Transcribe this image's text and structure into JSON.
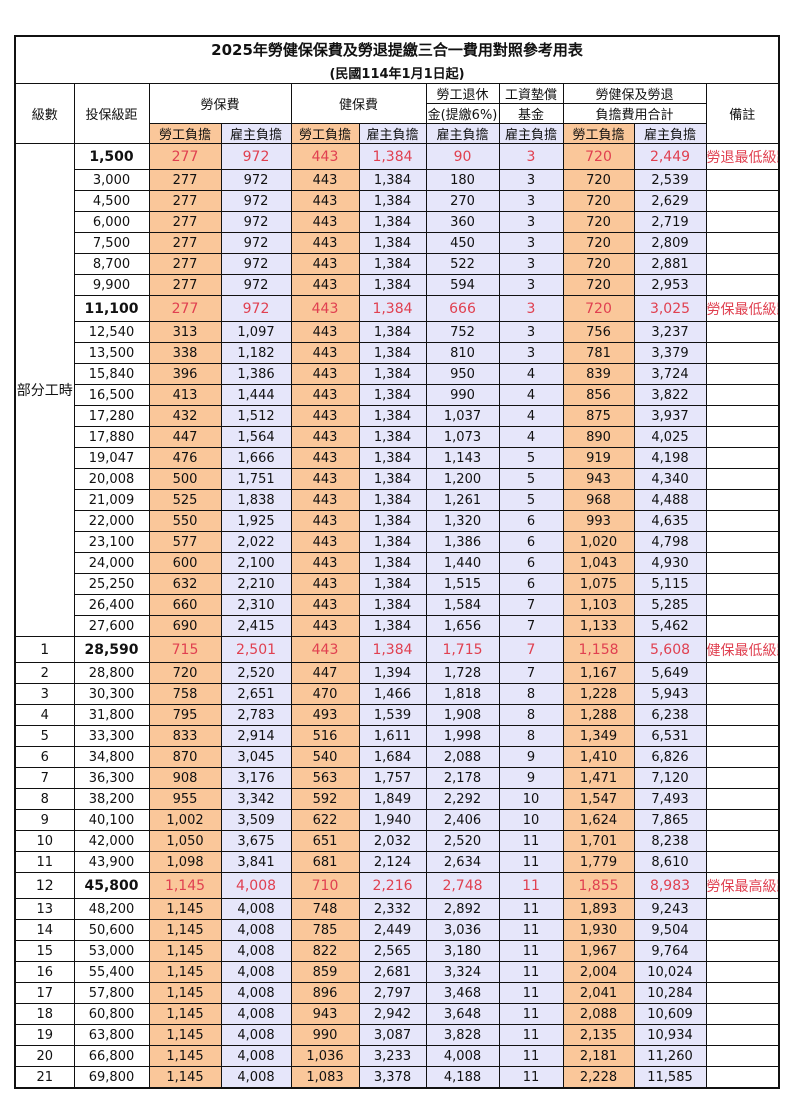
{
  "title": "2025年勞健保保費及勞退提繳三合一費用對照參考用表",
  "subtitle": "(民國114年1月1日起)",
  "headers": {
    "grade": "級數",
    "insured": "投保級距",
    "labor": "勞保費",
    "health": "健保費",
    "pension_1": "勞工退休",
    "pension_2": "金(提繳6%)",
    "wage_1": "工資墊償",
    "wage_2": "基金",
    "total_1": "勞健保及勞退",
    "total_2": "負擔費用合計",
    "note": "備註",
    "worker": "勞工負擔",
    "employer": "雇主負擔"
  },
  "colors": {
    "worker_bg": "#fac79a",
    "employer_bg": "#e6e6fa",
    "highlight_text": "#e04050"
  },
  "part_time_label": "部分工時",
  "rows": [
    {
      "c": [
        "",
        "1,500",
        "277",
        "972",
        "443",
        "1,384",
        "90",
        "3",
        "720",
        "2,449"
      ],
      "hl": true,
      "note": "勞退最低級距"
    },
    {
      "c": [
        "",
        "3,000",
        "277",
        "972",
        "443",
        "1,384",
        "180",
        "3",
        "720",
        "2,539"
      ]
    },
    {
      "c": [
        "",
        "4,500",
        "277",
        "972",
        "443",
        "1,384",
        "270",
        "3",
        "720",
        "2,629"
      ]
    },
    {
      "c": [
        "",
        "6,000",
        "277",
        "972",
        "443",
        "1,384",
        "360",
        "3",
        "720",
        "2,719"
      ]
    },
    {
      "c": [
        "",
        "7,500",
        "277",
        "972",
        "443",
        "1,384",
        "450",
        "3",
        "720",
        "2,809"
      ]
    },
    {
      "c": [
        "",
        "8,700",
        "277",
        "972",
        "443",
        "1,384",
        "522",
        "3",
        "720",
        "2,881"
      ]
    },
    {
      "c": [
        "",
        "9,900",
        "277",
        "972",
        "443",
        "1,384",
        "594",
        "3",
        "720",
        "2,953"
      ]
    },
    {
      "c": [
        "",
        "11,100",
        "277",
        "972",
        "443",
        "1,384",
        "666",
        "3",
        "720",
        "3,025"
      ],
      "hl": true,
      "note": "勞保最低級距"
    },
    {
      "c": [
        "",
        "12,540",
        "313",
        "1,097",
        "443",
        "1,384",
        "752",
        "3",
        "756",
        "3,237"
      ]
    },
    {
      "c": [
        "",
        "13,500",
        "338",
        "1,182",
        "443",
        "1,384",
        "810",
        "3",
        "781",
        "3,379"
      ]
    },
    {
      "c": [
        "",
        "15,840",
        "396",
        "1,386",
        "443",
        "1,384",
        "950",
        "4",
        "839",
        "3,724"
      ]
    },
    {
      "c": [
        "",
        "16,500",
        "413",
        "1,444",
        "443",
        "1,384",
        "990",
        "4",
        "856",
        "3,822"
      ]
    },
    {
      "c": [
        "",
        "17,280",
        "432",
        "1,512",
        "443",
        "1,384",
        "1,037",
        "4",
        "875",
        "3,937"
      ]
    },
    {
      "c": [
        "",
        "17,880",
        "447",
        "1,564",
        "443",
        "1,384",
        "1,073",
        "4",
        "890",
        "4,025"
      ]
    },
    {
      "c": [
        "",
        "19,047",
        "476",
        "1,666",
        "443",
        "1,384",
        "1,143",
        "5",
        "919",
        "4,198"
      ]
    },
    {
      "c": [
        "",
        "20,008",
        "500",
        "1,751",
        "443",
        "1,384",
        "1,200",
        "5",
        "943",
        "4,340"
      ]
    },
    {
      "c": [
        "",
        "21,009",
        "525",
        "1,838",
        "443",
        "1,384",
        "1,261",
        "5",
        "968",
        "4,488"
      ]
    },
    {
      "c": [
        "",
        "22,000",
        "550",
        "1,925",
        "443",
        "1,384",
        "1,320",
        "6",
        "993",
        "4,635"
      ]
    },
    {
      "c": [
        "",
        "23,100",
        "577",
        "2,022",
        "443",
        "1,384",
        "1,386",
        "6",
        "1,020",
        "4,798"
      ]
    },
    {
      "c": [
        "",
        "24,000",
        "600",
        "2,100",
        "443",
        "1,384",
        "1,440",
        "6",
        "1,043",
        "4,930"
      ]
    },
    {
      "c": [
        "",
        "25,250",
        "632",
        "2,210",
        "443",
        "1,384",
        "1,515",
        "6",
        "1,075",
        "5,115"
      ]
    },
    {
      "c": [
        "",
        "26,400",
        "660",
        "2,310",
        "443",
        "1,384",
        "1,584",
        "7",
        "1,103",
        "5,285"
      ]
    },
    {
      "c": [
        "",
        "27,600",
        "690",
        "2,415",
        "443",
        "1,384",
        "1,656",
        "7",
        "1,133",
        "5,462"
      ]
    },
    {
      "c": [
        "1",
        "28,590",
        "715",
        "2,501",
        "443",
        "1,384",
        "1,715",
        "7",
        "1,158",
        "5,608"
      ],
      "hl": true,
      "note": "健保最低級距"
    },
    {
      "c": [
        "2",
        "28,800",
        "720",
        "2,520",
        "447",
        "1,394",
        "1,728",
        "7",
        "1,167",
        "5,649"
      ]
    },
    {
      "c": [
        "3",
        "30,300",
        "758",
        "2,651",
        "470",
        "1,466",
        "1,818",
        "8",
        "1,228",
        "5,943"
      ]
    },
    {
      "c": [
        "4",
        "31,800",
        "795",
        "2,783",
        "493",
        "1,539",
        "1,908",
        "8",
        "1,288",
        "6,238"
      ]
    },
    {
      "c": [
        "5",
        "33,300",
        "833",
        "2,914",
        "516",
        "1,611",
        "1,998",
        "8",
        "1,349",
        "6,531"
      ]
    },
    {
      "c": [
        "6",
        "34,800",
        "870",
        "3,045",
        "540",
        "1,684",
        "2,088",
        "9",
        "1,410",
        "6,826"
      ]
    },
    {
      "c": [
        "7",
        "36,300",
        "908",
        "3,176",
        "563",
        "1,757",
        "2,178",
        "9",
        "1,471",
        "7,120"
      ]
    },
    {
      "c": [
        "8",
        "38,200",
        "955",
        "3,342",
        "592",
        "1,849",
        "2,292",
        "10",
        "1,547",
        "7,493"
      ]
    },
    {
      "c": [
        "9",
        "40,100",
        "1,002",
        "3,509",
        "622",
        "1,940",
        "2,406",
        "10",
        "1,624",
        "7,865"
      ]
    },
    {
      "c": [
        "10",
        "42,000",
        "1,050",
        "3,675",
        "651",
        "2,032",
        "2,520",
        "11",
        "1,701",
        "8,238"
      ]
    },
    {
      "c": [
        "11",
        "43,900",
        "1,098",
        "3,841",
        "681",
        "2,124",
        "2,634",
        "11",
        "1,779",
        "8,610"
      ]
    },
    {
      "c": [
        "12",
        "45,800",
        "1,145",
        "4,008",
        "710",
        "2,216",
        "2,748",
        "11",
        "1,855",
        "8,983"
      ],
      "hl": true,
      "note": "勞保最高級距"
    },
    {
      "c": [
        "13",
        "48,200",
        "1,145",
        "4,008",
        "748",
        "2,332",
        "2,892",
        "11",
        "1,893",
        "9,243"
      ]
    },
    {
      "c": [
        "14",
        "50,600",
        "1,145",
        "4,008",
        "785",
        "2,449",
        "3,036",
        "11",
        "1,930",
        "9,504"
      ]
    },
    {
      "c": [
        "15",
        "53,000",
        "1,145",
        "4,008",
        "822",
        "2,565",
        "3,180",
        "11",
        "1,967",
        "9,764"
      ]
    },
    {
      "c": [
        "16",
        "55,400",
        "1,145",
        "4,008",
        "859",
        "2,681",
        "3,324",
        "11",
        "2,004",
        "10,024"
      ]
    },
    {
      "c": [
        "17",
        "57,800",
        "1,145",
        "4,008",
        "896",
        "2,797",
        "3,468",
        "11",
        "2,041",
        "10,284"
      ]
    },
    {
      "c": [
        "18",
        "60,800",
        "1,145",
        "4,008",
        "943",
        "2,942",
        "3,648",
        "11",
        "2,088",
        "10,609"
      ]
    },
    {
      "c": [
        "19",
        "63,800",
        "1,145",
        "4,008",
        "990",
        "3,087",
        "3,828",
        "11",
        "2,135",
        "10,934"
      ]
    },
    {
      "c": [
        "20",
        "66,800",
        "1,145",
        "4,008",
        "1,036",
        "3,233",
        "4,008",
        "11",
        "2,181",
        "11,260"
      ]
    },
    {
      "c": [
        "21",
        "69,800",
        "1,145",
        "4,008",
        "1,083",
        "3,378",
        "4,188",
        "11",
        "2,228",
        "11,585"
      ]
    }
  ]
}
